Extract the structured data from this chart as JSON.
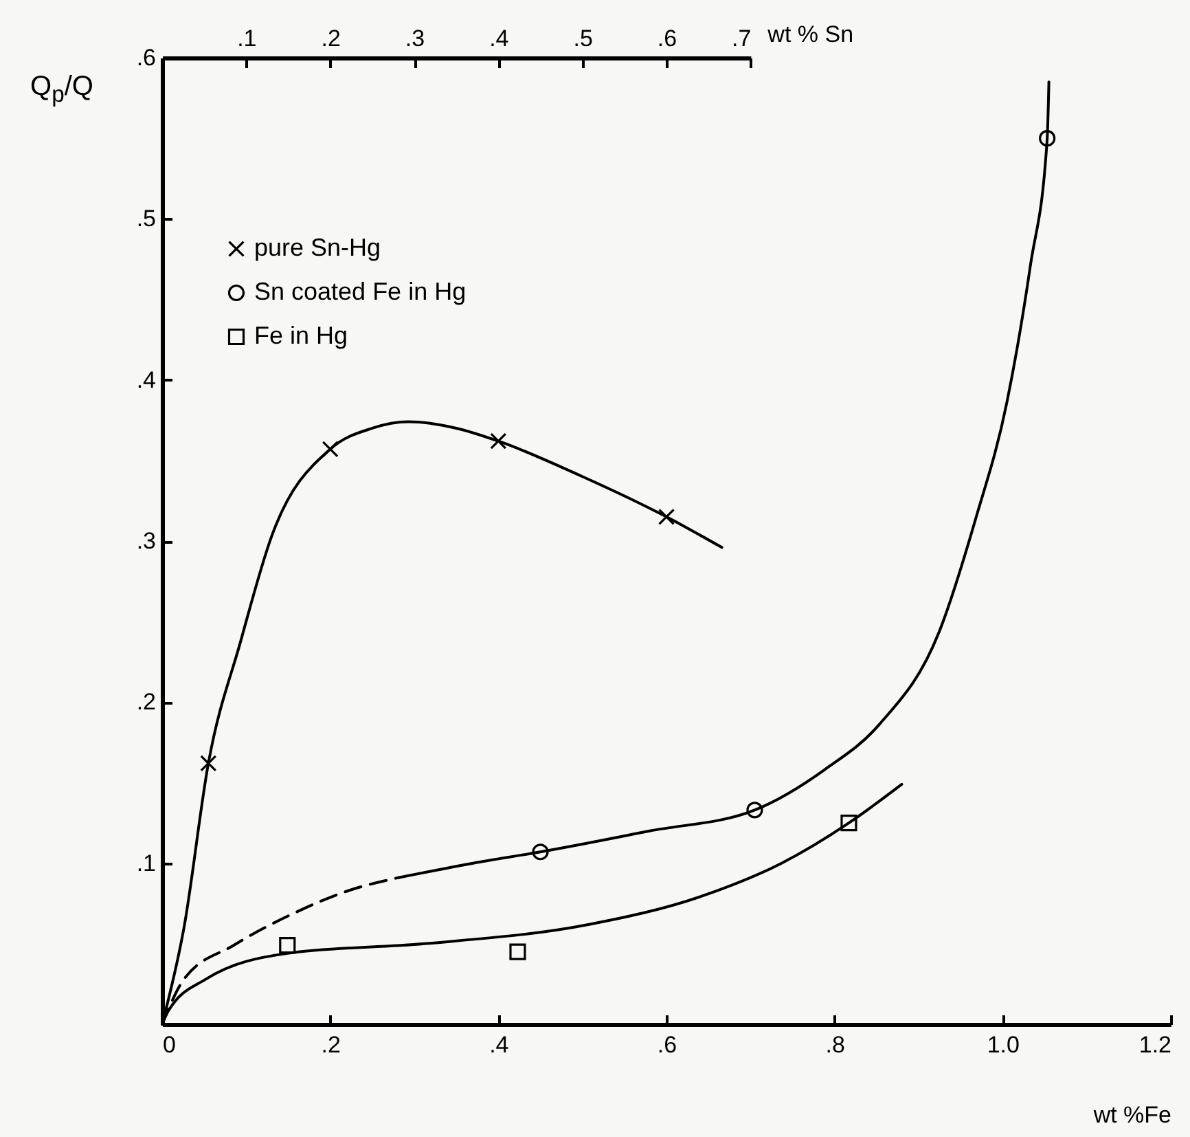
{
  "chart_data": {
    "type": "scatter",
    "xlabel": "wt %Fe",
    "x2label": "wt % Sn",
    "ylabel": "Q$_{p}$/Q",
    "xlim": [
      0,
      1.2
    ],
    "xticks": [
      0,
      {
        "value": 0.2,
        "label": ".2"
      },
      {
        "value": 0.4,
        "label": ".4"
      },
      {
        "value": 0.6,
        "label": ".6"
      },
      {
        "value": 0.8,
        "label": ".8"
      },
      {
        "value": 1.0,
        "label": "1.0"
      },
      {
        "value": 1.2,
        "label": "1.2"
      }
    ],
    "x2lim": [
      0,
      0.7
    ],
    "x2ticks": [
      {
        "value": 0.1,
        "label": ".1"
      },
      {
        "value": 0.2,
        "label": ".2"
      },
      {
        "value": 0.3,
        "label": ".3"
      },
      {
        "value": 0.4,
        "label": ".4"
      },
      {
        "value": 0.5,
        "label": ".5"
      },
      {
        "value": 0.6,
        "label": ".6"
      },
      {
        "value": 0.7,
        "label": ".7"
      }
    ],
    "ylim": [
      0,
      0.6
    ],
    "yticks": [
      {
        "value": 0.1,
        "label": ".1"
      },
      {
        "value": 0.2,
        "label": ".2"
      },
      {
        "value": 0.3,
        "label": ".3"
      },
      {
        "value": 0.4,
        "label": ".4"
      },
      {
        "value": 0.5,
        "label": ".5"
      },
      {
        "value": 0.6,
        "label": ".6"
      }
    ],
    "legend": "top left",
    "series": [
      {
        "name": "pure Sn-Hg",
        "axis": "x2",
        "marker": "cross",
        "color": "#000000",
        "x": [
          0.055,
          0.2,
          0.4,
          0.6
        ],
        "values": [
          0.162,
          0.357,
          0.362,
          0.315
        ]
      },
      {
        "type": "line",
        "axis": "x2",
        "color": "#000000",
        "x": [
          0,
          0.026,
          0.055,
          0.093,
          0.131,
          0.2,
          0.25,
          0.293,
          0.35,
          0.4,
          0.5,
          0.6,
          0.666
        ],
        "values": [
          0,
          0.06,
          0.162,
          0.237,
          0.304,
          0.357,
          0.37,
          0.374,
          0.37,
          0.362,
          0.34,
          0.315,
          0.296
        ]
      },
      {
        "name": "Sn coated Fe in Hg",
        "marker": "circle",
        "color": "#000000",
        "x": [
          0.45,
          0.705,
          1.053
        ],
        "values": [
          0.107,
          0.133,
          0.55
        ]
      },
      {
        "type": "line",
        "line_style": "dashed",
        "color": "#000000",
        "x": [
          0,
          0.026,
          0.085,
          0.157,
          0.222,
          0.281
        ],
        "values": [
          0,
          0.028,
          0.049,
          0.069,
          0.083,
          0.091
        ]
      },
      {
        "type": "line",
        "color": "#000000",
        "x": [
          0.281,
          0.37,
          0.45,
          0.58,
          0.705,
          0.788,
          0.853,
          0.924,
          0.968,
          1.005,
          1.033,
          1.053,
          1.055
        ],
        "values": [
          0.091,
          0.1,
          0.107,
          0.12,
          0.133,
          0.158,
          0.186,
          0.243,
          0.314,
          0.386,
          0.471,
          0.55,
          0.585
        ]
      },
      {
        "name": "Fe in Hg",
        "marker": "square",
        "color": "#000000",
        "x": [
          0.149,
          0.423,
          0.817
        ],
        "values": [
          0.049,
          0.045,
          0.125
        ]
      },
      {
        "type": "line",
        "color": "#000000",
        "x": [
          0,
          0.007,
          0.052,
          0.149,
          0.312,
          0.508,
          0.639,
          0.737,
          0.817,
          0.88
        ],
        "values": [
          0,
          0.008,
          0.028,
          0.044,
          0.05,
          0.062,
          0.079,
          0.1,
          0.125,
          0.149
        ]
      }
    ]
  }
}
